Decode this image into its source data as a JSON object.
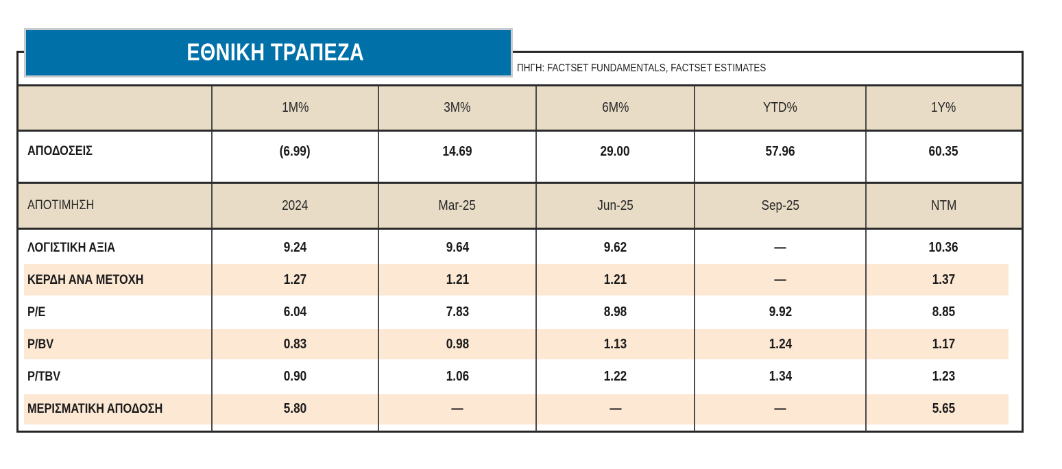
{
  "title": "ΕΘΝΙΚΗ ΤΡΑΠΕΖΑ",
  "source": "ΠΗΓΗ: FACTSET FUNDAMENTALS, FACTSET ESTIMATES",
  "colors": {
    "banner": "#0070a8",
    "header_band": "#e8dcc6",
    "stripe": "#fde8d4",
    "lines": "#262626"
  },
  "returns": {
    "columns": [
      "1M%",
      "3M%",
      "6M%",
      "YTD%",
      "1Y%"
    ],
    "label": "ΑΠΟΔΟΣΕΙΣ",
    "values": [
      "(6.99)",
      "14.69",
      "29.00",
      "57.96",
      "60.35"
    ]
  },
  "valuation": {
    "label": "ΑΠΟΤΙΜΗΣΗ",
    "columns": [
      "2024",
      "Mar-25",
      "Jun-25",
      "Sep-25",
      "NTM"
    ],
    "rows": [
      {
        "label": "ΛΟΓΙΣΤΙΚΗ ΑΞΙΑ",
        "values": [
          "9.24",
          "9.64",
          "9.62",
          "—",
          "10.36"
        ]
      },
      {
        "label": "ΚΕΡΔΗ ΑΝΑ ΜΕΤΟΧΗ",
        "values": [
          "1.27",
          "1.21",
          "1.21",
          "—",
          "1.37"
        ]
      },
      {
        "label": "P/E",
        "values": [
          "6.04",
          "7.83",
          "8.98",
          "9.92",
          "8.85"
        ]
      },
      {
        "label": "P/BV",
        "values": [
          "0.83",
          "0.98",
          "1.13",
          "1.24",
          "1.17"
        ]
      },
      {
        "label": "P/TBV",
        "values": [
          "0.90",
          "1.06",
          "1.22",
          "1.34",
          "1.23"
        ]
      },
      {
        "label": "ΜΕΡΙΣΜΑΤΙΚΗ ΑΠΟΔΟΣΗ",
        "values": [
          "5.80",
          "—",
          "—",
          "—",
          "5.65"
        ]
      }
    ]
  }
}
